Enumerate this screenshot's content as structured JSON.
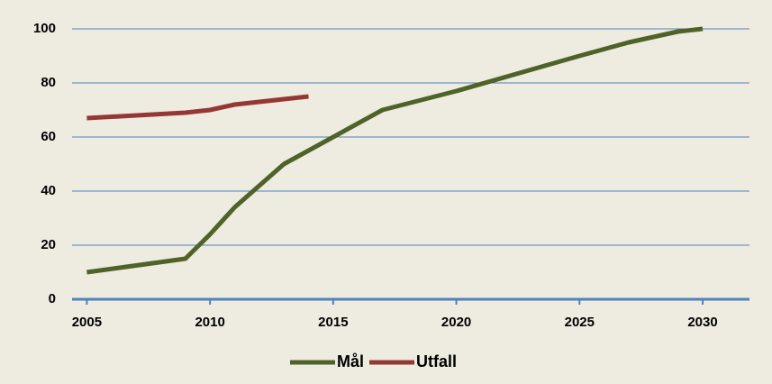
{
  "chart_data": {
    "type": "line",
    "series": [
      {
        "name": "Mål",
        "color": "#4f6228",
        "x": [
          2005,
          2009,
          2010,
          2011,
          2013,
          2017,
          2020,
          2025,
          2027,
          2029,
          2030
        ],
        "values": [
          10,
          15,
          24,
          34,
          50,
          70,
          77,
          90,
          95,
          99,
          100
        ]
      },
      {
        "name": "Utfall",
        "color": "#953735",
        "x": [
          2005,
          2009,
          2010,
          2011,
          2014
        ],
        "values": [
          67,
          69,
          70,
          72,
          75
        ]
      }
    ],
    "xlim": [
      2004.4,
      2031.9
    ],
    "xticks": [
      2005,
      2010,
      2015,
      2020,
      2025,
      2030
    ],
    "ylim": [
      0,
      100
    ],
    "yticks": [
      0,
      20,
      40,
      60,
      80,
      100
    ],
    "grid": true,
    "legend": "bottom"
  }
}
